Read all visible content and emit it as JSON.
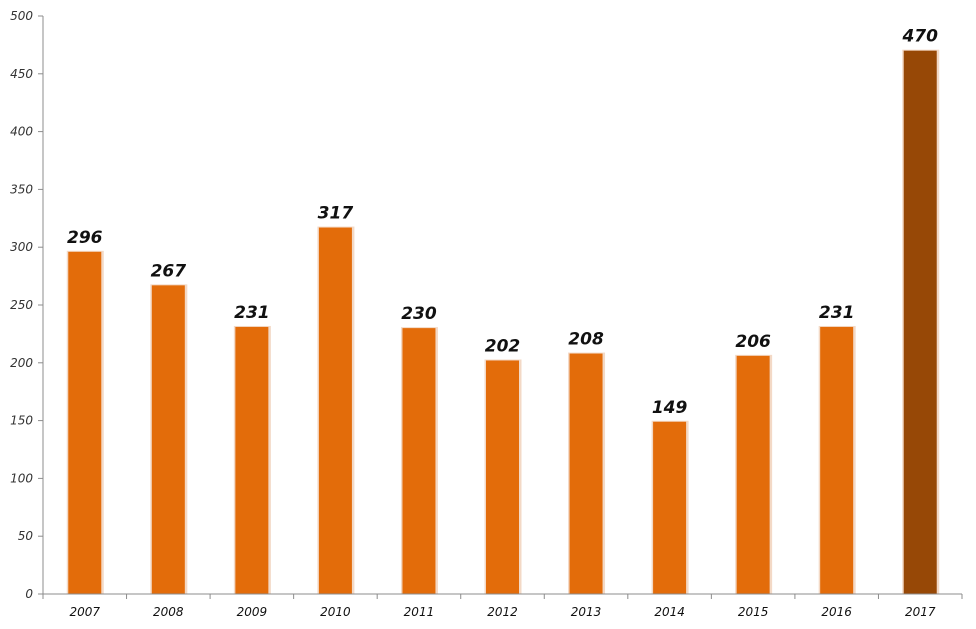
{
  "chart_data": {
    "type": "bar",
    "categories": [
      "2007",
      "2008",
      "2009",
      "2010",
      "2011",
      "2012",
      "2013",
      "2014",
      "2015",
      "2016",
      "2017"
    ],
    "values": [
      296,
      267,
      231,
      317,
      230,
      202,
      208,
      149,
      206,
      231,
      470
    ],
    "data_labels": [
      "296",
      "267",
      "231",
      "317",
      "230",
      "202",
      "208",
      "149",
      "206",
      "231",
      "470"
    ],
    "ylim": [
      0,
      500
    ],
    "yticks": [
      0,
      50,
      100,
      150,
      200,
      250,
      300,
      350,
      400,
      450,
      500
    ],
    "ytick_labels": [
      "0",
      "50",
      "100",
      "150",
      "200",
      "250",
      "300",
      "350",
      "400",
      "450",
      "500"
    ],
    "grid": false,
    "legend": "none",
    "colors": {
      "bar": "#e36c0a",
      "highlight_bar": "#974806",
      "bar_edge": "#f3d9c6",
      "axis": "#8c8c8c"
    },
    "highlight_index": 10
  }
}
